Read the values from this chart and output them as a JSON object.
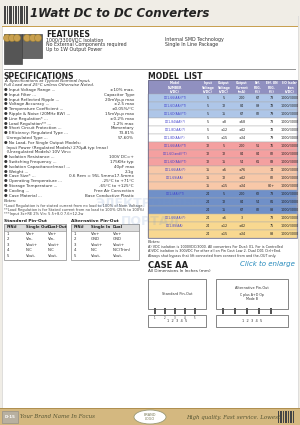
{
  "title": "1Watt DC to DC Converters",
  "bg_color": "#f0ede6",
  "content_bg": "#f8f6f0",
  "features_title": "FEATURES",
  "features_lines": [
    "1000/3300VDC Isolation",
    "No External Components required",
    "Up to 1W Output Power"
  ],
  "features_right": [
    "Internal SMD Technology",
    "Single In Line Package"
  ],
  "specs_title": "SPECIFICATIONS",
  "specs_sub1": "A. Specifications at Typical Nominal Input,",
  "specs_sub2": "Full Load and 25°C unless Otherwise Noted.",
  "specs": [
    [
      "● Input Voltage Range ...",
      "±10% max."
    ],
    [
      "● Input Filter ...",
      "Capacitor Type"
    ],
    [
      "● Input Reflected Ripple ...",
      "20mVp-p max"
    ],
    [
      "● Voltage Accuracy ...",
      "±2.5 max"
    ],
    [
      "● Temperature Coefficient ...",
      "±0.05%/°C"
    ],
    [
      "● Ripple & Noise (20MHz BW) ...",
      "15mVp-p max"
    ],
    [
      "● Line Regulation* ...",
      "±0.2% max"
    ],
    [
      "● Load Regulation** ...",
      "1.2% max"
    ],
    [
      "● Short Circuit Protection ...",
      "Momentary"
    ],
    [
      "● Efficiency: Regulated Type ...",
      "73-81%"
    ],
    [
      "  Unregulated Type ...",
      "57-60%"
    ],
    [
      "● No Load, For Single Output Models:",
      ""
    ],
    [
      "  Input Power (Regulated Models) 270μA typ (max)",
      ""
    ],
    [
      "  (Unregulated Models) 10V Vin=",
      ""
    ],
    [
      "● Isolation Resistance ...",
      "100V DC=+"
    ],
    [
      "● Switching Frequency ...",
      "175KHz typ"
    ],
    [
      "● Isolation Capacitance(max) ...",
      "40pF max"
    ],
    [
      "● Weight ...",
      "2.1g"
    ],
    [
      "● Case Size* ...",
      "0.6 Rem = 95L 5mmx17.5mmx"
    ],
    [
      "● Operating Temperature ...",
      "-25°C to +71°C"
    ],
    [
      "● Storage Temperature ...",
      "-65°C to +125°C"
    ],
    [
      "● Cooling ...",
      "Free Air Convection"
    ],
    [
      "● Case Material ...",
      "Base Conductive Plastic"
    ]
  ],
  "model_list_title": "MODEL  LIST",
  "model_col_headers": [
    "Model\nNUMBER\n(VDC)",
    "Input\nVoltage\n(VDC)",
    "Output\nVoltage\n(VDC)",
    "Output\nCurrent\n(mA)",
    "Eff.\nREG.\n(%)",
    "Eff. UN\nREG.\n(%)",
    "I/O Isola-\ntion\n(VDC)"
  ],
  "model_rows_blue": [
    [
      "D01-66(AA)(*T)",
      "5",
      "5",
      "200",
      "67",
      "73",
      "1000/3000"
    ],
    [
      "D01-6C(AA)(*T)",
      "5",
      "12",
      "84",
      "89",
      "78",
      "1000/3000"
    ],
    [
      "D01-6D(AA)(*T)",
      "5",
      "15",
      "67",
      "82",
      "79",
      "1000/3000"
    ]
  ],
  "model_rows_white1": [
    [
      "D01-84(AA)(*)",
      "5",
      "±8",
      "±58",
      "",
      "73",
      "1000/3000"
    ],
    [
      "D01-8C(AA)(*)",
      "5",
      "±12",
      "±42",
      "",
      "78",
      "1000/3000"
    ],
    [
      "D01-8D(AA)(*)",
      "5",
      "±15",
      "±34",
      "",
      "79",
      "1000/3000"
    ]
  ],
  "model_rows_red1": [
    [
      "D01-66(AA)(*T)",
      "12",
      "5",
      "200",
      "51",
      "76",
      "1000/3000"
    ],
    [
      "D01-6C(and)(*T)",
      "12",
      "12",
      "84",
      "84",
      "82",
      "1000/3000"
    ],
    [
      "D01-6D(AA)(*T)",
      "12",
      "15",
      "54",
      "61",
      "83",
      "1000/3000"
    ]
  ],
  "model_rows_pink": [
    [
      "D01-66(AA)(*)",
      "15",
      "±5",
      "±76",
      "",
      "74",
      "1000/3000"
    ],
    [
      "D01-6S(AA)",
      "15",
      "12",
      "±42",
      "",
      "82",
      "1000/3000"
    ],
    [
      "",
      "15",
      "±15",
      "±34",
      "",
      "80+",
      "1000/3000"
    ]
  ],
  "model_rows_darkblue": [
    [
      "D01-(AA)(*T)",
      "24",
      "5",
      "200",
      "62",
      "73",
      "1000/3000"
    ],
    [
      "",
      "24",
      "12",
      "84",
      "54",
      "81",
      "1000/3000"
    ],
    [
      "",
      "24",
      "15",
      "67",
      "82",
      "88",
      "1000/3000"
    ]
  ],
  "model_rows_orange": [
    [
      "D01-66(AA)(*)",
      "24",
      "±5",
      "3",
      "",
      "73",
      "1000/3000"
    ],
    [
      "D01-8S(AA)",
      "24",
      "±12",
      "±42",
      "",
      "75",
      "1000/3000"
    ],
    [
      "",
      "24",
      "±15",
      "±34",
      "",
      "88",
      "1000/3000"
    ]
  ],
  "model_notes": [
    "Notes:",
    "A) VDC isolation is 1000VDC/3000. All converters For Dual: 01, For is Controlled",
    "A)VDC isolation is 300VDC For other all on Pin Cout Low 2. Dual D01 Ctrl+End.",
    "Always shut bypass that lift connected from connect from and the-OUT only."
  ],
  "case_title": "CASE AA",
  "case_sub": "All Dimensions In Inches (mm)",
  "click_to_enlarge": "Click to enlarge",
  "pin_table_std_title": "Standard Pin-Out",
  "pin_table_alt_title": "Alternative Pin-Out",
  "pin_std_headers": [
    "PIN#",
    "Single Out",
    "Dual-Out"
  ],
  "pin_alt_headers": [
    "PIN#",
    "Single In",
    "Dual"
  ],
  "pin_std_rows": [
    [
      "1",
      "Vin+",
      "Vin+"
    ],
    [
      "2",
      "Vin-",
      "Vin-"
    ],
    [
      "3",
      "Vout+",
      "Vout+"
    ],
    [
      "4",
      "N.C",
      "N.C"
    ],
    [
      "5",
      "Vout-",
      "Vout-"
    ]
  ],
  "pin_alt_rows": [
    [
      "1",
      "Vin+",
      "Vin+"
    ],
    [
      "2",
      "GND",
      "GND"
    ],
    [
      "3",
      "Vout+",
      "Vout+"
    ],
    [
      "4",
      "N.C",
      "N.C(Trim)"
    ],
    [
      "5",
      "Vout-",
      "Vout-"
    ]
  ],
  "notes_spec": [
    "*Load Regulation is for stated current from no load to 100% of Nom Voltage.",
    "**Load Regulation is for Stated current from no load to 100% (25% to 100%)",
    "***Input 3s+RE 2% Vin: 5.5+8.0 7.6+12.2w"
  ],
  "footer_left": "Your Brand Name In Focus",
  "footer_right": "High quality. Fast service. Lowest",
  "footer_bg": "#d4b880",
  "page_num": "D-15",
  "header_underline_color": "#c8a050",
  "row_color_blue": "#aec6e8",
  "row_color_white": "#ffffff",
  "row_color_red": "#f4a0a0",
  "row_color_pink": "#f8c8a8",
  "row_color_darkblue": "#7090c8",
  "row_color_orange": "#f8d890",
  "table_header_bg": "#9090c0",
  "model_name_color": "#4040cc"
}
